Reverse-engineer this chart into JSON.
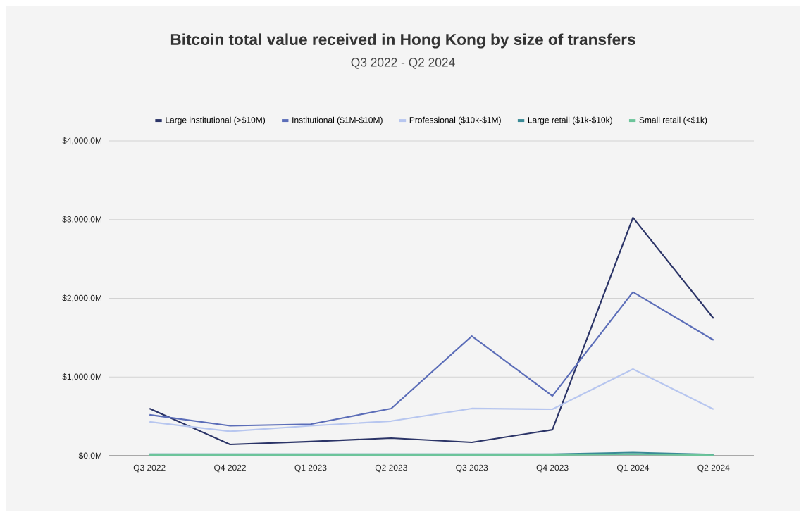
{
  "chart_data": {
    "type": "line",
    "title": "Bitcoin total value received in Hong Kong by size of transfers",
    "subtitle": "Q3 2022 - Q2 2024",
    "categories": [
      "Q3 2022",
      "Q4 2022",
      "Q1 2023",
      "Q2 2023",
      "Q3 2023",
      "Q4 2023",
      "Q1 2024",
      "Q2 2024"
    ],
    "series": [
      {
        "name": "Large institutional (>$10M)",
        "color": "#2b3467",
        "values": [
          600,
          143,
          180,
          224,
          170,
          330,
          3025,
          1745
        ]
      },
      {
        "name": "Institutional ($1M-$10M)",
        "color": "#5b6db8",
        "values": [
          520,
          380,
          400,
          600,
          1520,
          760,
          2080,
          1470
        ]
      },
      {
        "name": "Professional ($10k-$1M)",
        "color": "#b7c6ef",
        "values": [
          430,
          310,
          380,
          440,
          600,
          590,
          1100,
          590
        ]
      },
      {
        "name": "Large retail ($1k-$10k)",
        "color": "#3a8a96",
        "values": [
          20,
          20,
          20,
          20,
          20,
          20,
          40,
          15
        ]
      },
      {
        "name": "Small retail (<$1k)",
        "color": "#6cc49a",
        "values": [
          10,
          10,
          10,
          10,
          10,
          10,
          20,
          5
        ]
      }
    ],
    "ylim": [
      0,
      4000
    ],
    "yticks": [
      {
        "value": 0,
        "label": "$0.0M"
      },
      {
        "value": 1000,
        "label": "$1,000.0M"
      },
      {
        "value": 2000,
        "label": "$2,000.0M"
      },
      {
        "value": 3000,
        "label": "$3,000.0M"
      },
      {
        "value": 4000,
        "label": "$4,000.0M"
      }
    ],
    "grid": "y",
    "legend": "top",
    "marker": "none",
    "line_style": "solid"
  }
}
